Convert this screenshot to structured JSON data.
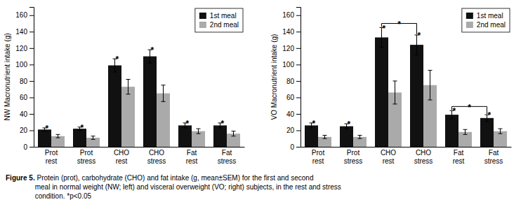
{
  "chart_data": [
    {
      "type": "bar",
      "y_label": "NW Macronutrient intake (g)",
      "categories": [
        "Prot\nrest",
        "Prot\nstress",
        "CHO\nrest",
        "CHO\nstress",
        "Fat\nrest",
        "Fat\nstress"
      ],
      "series": [
        {
          "name": "1st meal",
          "color": "#111111",
          "values": [
            21,
            22,
            99,
            110,
            26,
            26
          ],
          "errors": [
            2,
            2,
            8,
            8,
            3,
            3
          ]
        },
        {
          "name": "2nd meal",
          "color": "#aaaaaa",
          "values": [
            13,
            11,
            73,
            65,
            19,
            16
          ],
          "errors": [
            2,
            2,
            9,
            10,
            3,
            3
          ]
        }
      ],
      "ylim": [
        0,
        170
      ],
      "yticks": [
        0,
        20,
        40,
        60,
        80,
        100,
        120,
        140,
        160
      ],
      "grid": false,
      "legend": "upper right",
      "annotations": [
        {
          "text": "*",
          "category": "Prot\nrest",
          "series": "1st meal"
        },
        {
          "text": "*",
          "category": "Prot\nstress",
          "series": "1st meal"
        },
        {
          "text": "*",
          "category": "CHO\nrest",
          "series": "1st meal"
        },
        {
          "text": "*",
          "category": "CHO\nstress",
          "series": "1st meal"
        },
        {
          "text": "*",
          "category": "Fat\nrest",
          "series": "1st meal"
        },
        {
          "text": "*",
          "category": "Fat\nstress",
          "series": "1st meal"
        }
      ]
    },
    {
      "type": "bar",
      "y_label": "VO Macronutrient intake (g)",
      "categories": [
        "Prot\nrest",
        "Prot\nstress",
        "CHO\nrest",
        "CHO\nstress",
        "Fat\nrest",
        "Fat\nstress"
      ],
      "series": [
        {
          "name": "1st meal",
          "color": "#111111",
          "values": [
            26,
            25,
            133,
            124,
            39,
            35
          ],
          "errors": [
            3,
            3,
            12,
            12,
            5,
            4
          ]
        },
        {
          "name": "2nd meal",
          "color": "#aaaaaa",
          "values": [
            12,
            12,
            66,
            75,
            18,
            19
          ],
          "errors": [
            2,
            2,
            14,
            18,
            3,
            3
          ]
        }
      ],
      "ylim": [
        0,
        170
      ],
      "yticks": [
        0,
        20,
        40,
        60,
        80,
        100,
        120,
        140,
        160
      ],
      "grid": false,
      "legend": "upper right",
      "annotations": [
        {
          "text": "*",
          "category": "Prot\nrest",
          "series": "1st meal"
        },
        {
          "text": "*",
          "category": "Prot\nstress",
          "series": "1st meal"
        },
        {
          "text": "*",
          "category": "CHO\nrest",
          "series": "1st meal"
        },
        {
          "text": "*",
          "category": "CHO\nstress",
          "series": "1st meal"
        },
        {
          "text": "*",
          "category": "Fat\nrest",
          "series": "1st meal"
        },
        {
          "text": "*",
          "category": "Fat\nstress",
          "series": "1st meal"
        },
        {
          "text": "*",
          "category": [
            "CHO\nrest",
            "CHO\nstress"
          ],
          "series": "1st meal"
        },
        {
          "text": "*",
          "category": [
            "Fat\nrest",
            "Fat\nstress"
          ],
          "series": "1st meal"
        }
      ]
    }
  ],
  "caption": {
    "bold": "Figure 5.",
    "text": " Protein (prot), carbohydrate (CHO) and fat intake (g, mean±SEM) for the first and second\nmeal in normal weight (NW; left) and visceral overweight (VO; right) subjects, in the rest and stress\ncondition. *p<0.05"
  }
}
